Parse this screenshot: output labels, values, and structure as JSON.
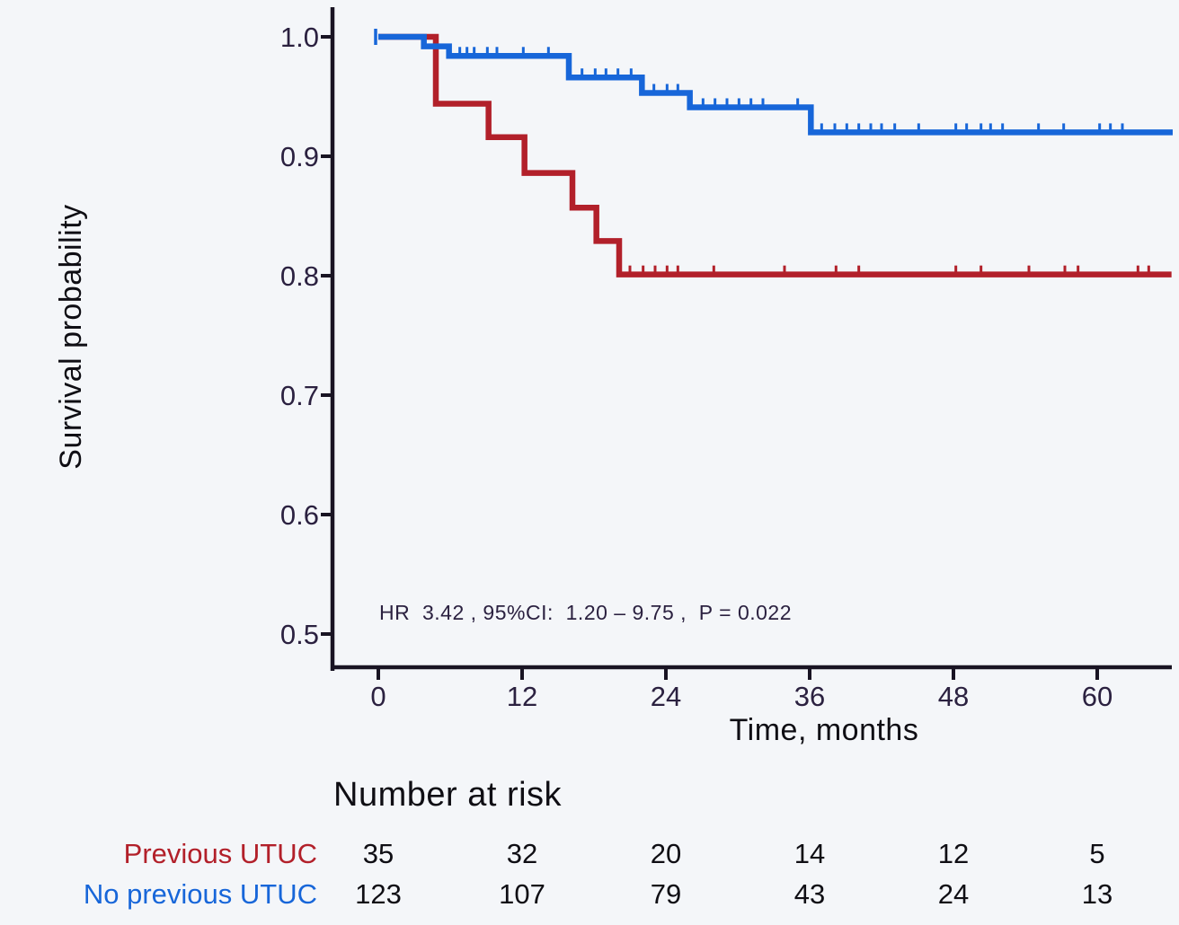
{
  "figure": {
    "background": "#f4f6f9",
    "axis_color": "#191423",
    "tick_text_color": "#2b2140",
    "text_color": "#0f0e14"
  },
  "chart_data": {
    "type": "line",
    "subtype": "kaplan_meier_step",
    "title": "",
    "xlabel": "Time, months",
    "ylabel": "Survival probability",
    "xlim": [
      0,
      66.3
    ],
    "ylim": [
      0.47,
      1.02
    ],
    "grid": false,
    "legend_position": "none",
    "x_ticks": [
      0,
      12,
      24,
      36,
      48,
      60
    ],
    "x_tick_labels": [
      "0",
      "12",
      "24",
      "36",
      "48",
      "60"
    ],
    "y_ticks": [
      1.0,
      0.9,
      0.8,
      0.7,
      0.6,
      0.5
    ],
    "y_tick_labels": [
      "1.0",
      "0.9",
      "0.8",
      "0.7",
      "0.6",
      "0.5"
    ],
    "annotation": "HR  3.42 , 95%CI:  1.20 – 9.75 ,  P = 0.022",
    "series": [
      {
        "name": "Previous UTUC",
        "color": "#b2202a",
        "steps_t_s": [
          [
            0,
            1.0
          ],
          [
            4.8,
            0.944
          ],
          [
            9.2,
            0.916
          ],
          [
            12.2,
            0.886
          ],
          [
            16.2,
            0.857
          ],
          [
            18.2,
            0.829
          ],
          [
            20.1,
            0.801
          ]
        ],
        "end_t": 66.2,
        "start_cap": false,
        "censor_t": [
          21.0,
          22.1,
          23.1,
          24.1,
          25.0,
          28.0,
          33.9,
          38.2,
          40.1,
          48.2,
          50.3,
          54.3,
          57.3,
          58.4,
          63.4,
          64.3
        ],
        "number_at_risk": [
          35,
          32,
          20,
          14,
          12,
          5
        ]
      },
      {
        "name": "No previous UTUC",
        "color": "#1766d9",
        "steps_t_s": [
          [
            0,
            1.0
          ],
          [
            3.8,
            0.992
          ],
          [
            5.9,
            0.984
          ],
          [
            15.9,
            0.966
          ],
          [
            22.0,
            0.953
          ],
          [
            26.0,
            0.941
          ],
          [
            36.1,
            0.92
          ]
        ],
        "end_t": 66.3,
        "start_cap": true,
        "censor_t": [
          6.8,
          7.4,
          8.0,
          9.1,
          9.9,
          12.1,
          14.2,
          17.0,
          18.1,
          19.0,
          20.0,
          21.1,
          23.0,
          24.1,
          25.0,
          27.1,
          28.1,
          29.1,
          30.1,
          31.1,
          32.1,
          35.0,
          37.0,
          38.1,
          39.1,
          40.1,
          41.1,
          42.0,
          43.1,
          45.1,
          48.2,
          49.1,
          50.3,
          51.1,
          52.1,
          55.1,
          57.2,
          60.2,
          61.1,
          62.1
        ],
        "number_at_risk": [
          123,
          107,
          79,
          43,
          24,
          13
        ]
      }
    ],
    "number_at_risk_times": [
      0,
      12,
      24,
      36,
      48,
      60
    ]
  },
  "risk_table": {
    "title": "Number at risk",
    "rows": [
      {
        "label": "Previous UTUC",
        "color": "#b2202a",
        "counts": [
          "35",
          "32",
          "20",
          "14",
          "12",
          "5"
        ]
      },
      {
        "label": "No previous UTUC",
        "color": "#1766d9",
        "counts": [
          "123",
          "107",
          "79",
          "43",
          "24",
          "13"
        ]
      }
    ]
  }
}
